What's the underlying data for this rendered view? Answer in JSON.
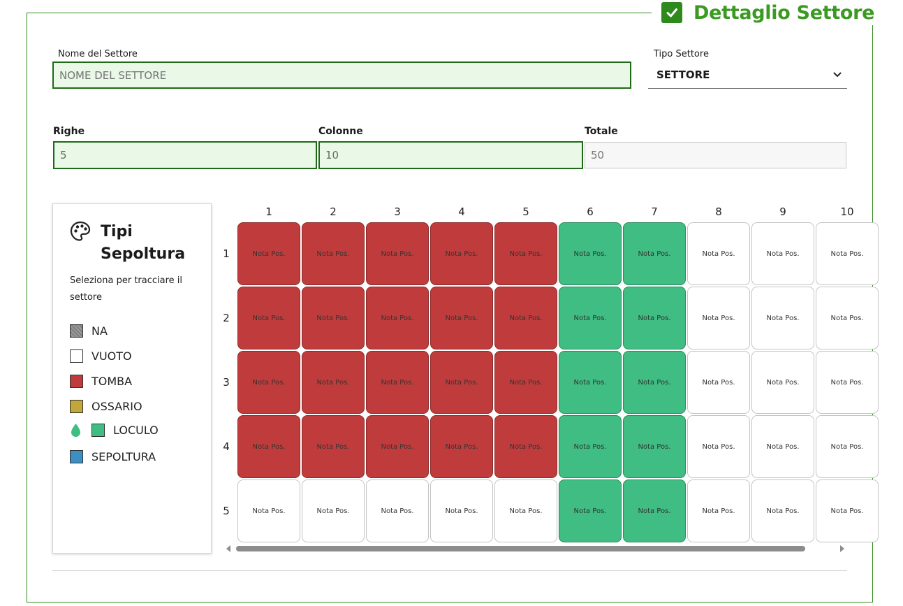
{
  "header": {
    "title": "Dettaglio Settore"
  },
  "form": {
    "nome_label": "Nome del Settore",
    "nome_placeholder": "NOME DEL SETTORE",
    "tipo_label": "Tipo Settore",
    "tipo_value": "SETTORE",
    "righe_label": "Righe",
    "righe_value": "5",
    "colonne_label": "Colonne",
    "colonne_value": "10",
    "totale_label": "Totale",
    "totale_value": "50"
  },
  "legend": {
    "title": "Tipi Sepoltura",
    "subtitle": "Seleziona per tracciare il settore",
    "items": [
      {
        "label": "NA",
        "color": "#8a8a8a"
      },
      {
        "label": "VUOTO",
        "color": "#ffffff"
      },
      {
        "label": "TOMBA",
        "color": "#c03c3c"
      },
      {
        "label": "OSSARIO",
        "color": "#c2a83a"
      },
      {
        "label": "LOCULO",
        "color": "#3fbd82",
        "selected": true
      },
      {
        "label": "SEPOLTURA",
        "color": "#3d8fc2"
      }
    ]
  },
  "grid": {
    "columns": [
      "1",
      "2",
      "3",
      "4",
      "5",
      "6",
      "7",
      "8",
      "9",
      "10"
    ],
    "rows": [
      "1",
      "2",
      "3",
      "4",
      "5"
    ],
    "cell_label": "Nota Pos.",
    "cells": [
      [
        "TOMBA",
        "TOMBA",
        "TOMBA",
        "TOMBA",
        "TOMBA",
        "LOCULO",
        "LOCULO",
        "VUOTO",
        "VUOTO",
        "VUOTO"
      ],
      [
        "TOMBA",
        "TOMBA",
        "TOMBA",
        "TOMBA",
        "TOMBA",
        "LOCULO",
        "LOCULO",
        "VUOTO",
        "VUOTO",
        "VUOTO"
      ],
      [
        "TOMBA",
        "TOMBA",
        "TOMBA",
        "TOMBA",
        "TOMBA",
        "LOCULO",
        "LOCULO",
        "VUOTO",
        "VUOTO",
        "VUOTO"
      ],
      [
        "TOMBA",
        "TOMBA",
        "TOMBA",
        "TOMBA",
        "TOMBA",
        "LOCULO",
        "LOCULO",
        "VUOTO",
        "VUOTO",
        "VUOTO"
      ],
      [
        "VUOTO",
        "VUOTO",
        "VUOTO",
        "VUOTO",
        "VUOTO",
        "LOCULO",
        "LOCULO",
        "VUOTO",
        "VUOTO",
        "VUOTO"
      ]
    ]
  }
}
